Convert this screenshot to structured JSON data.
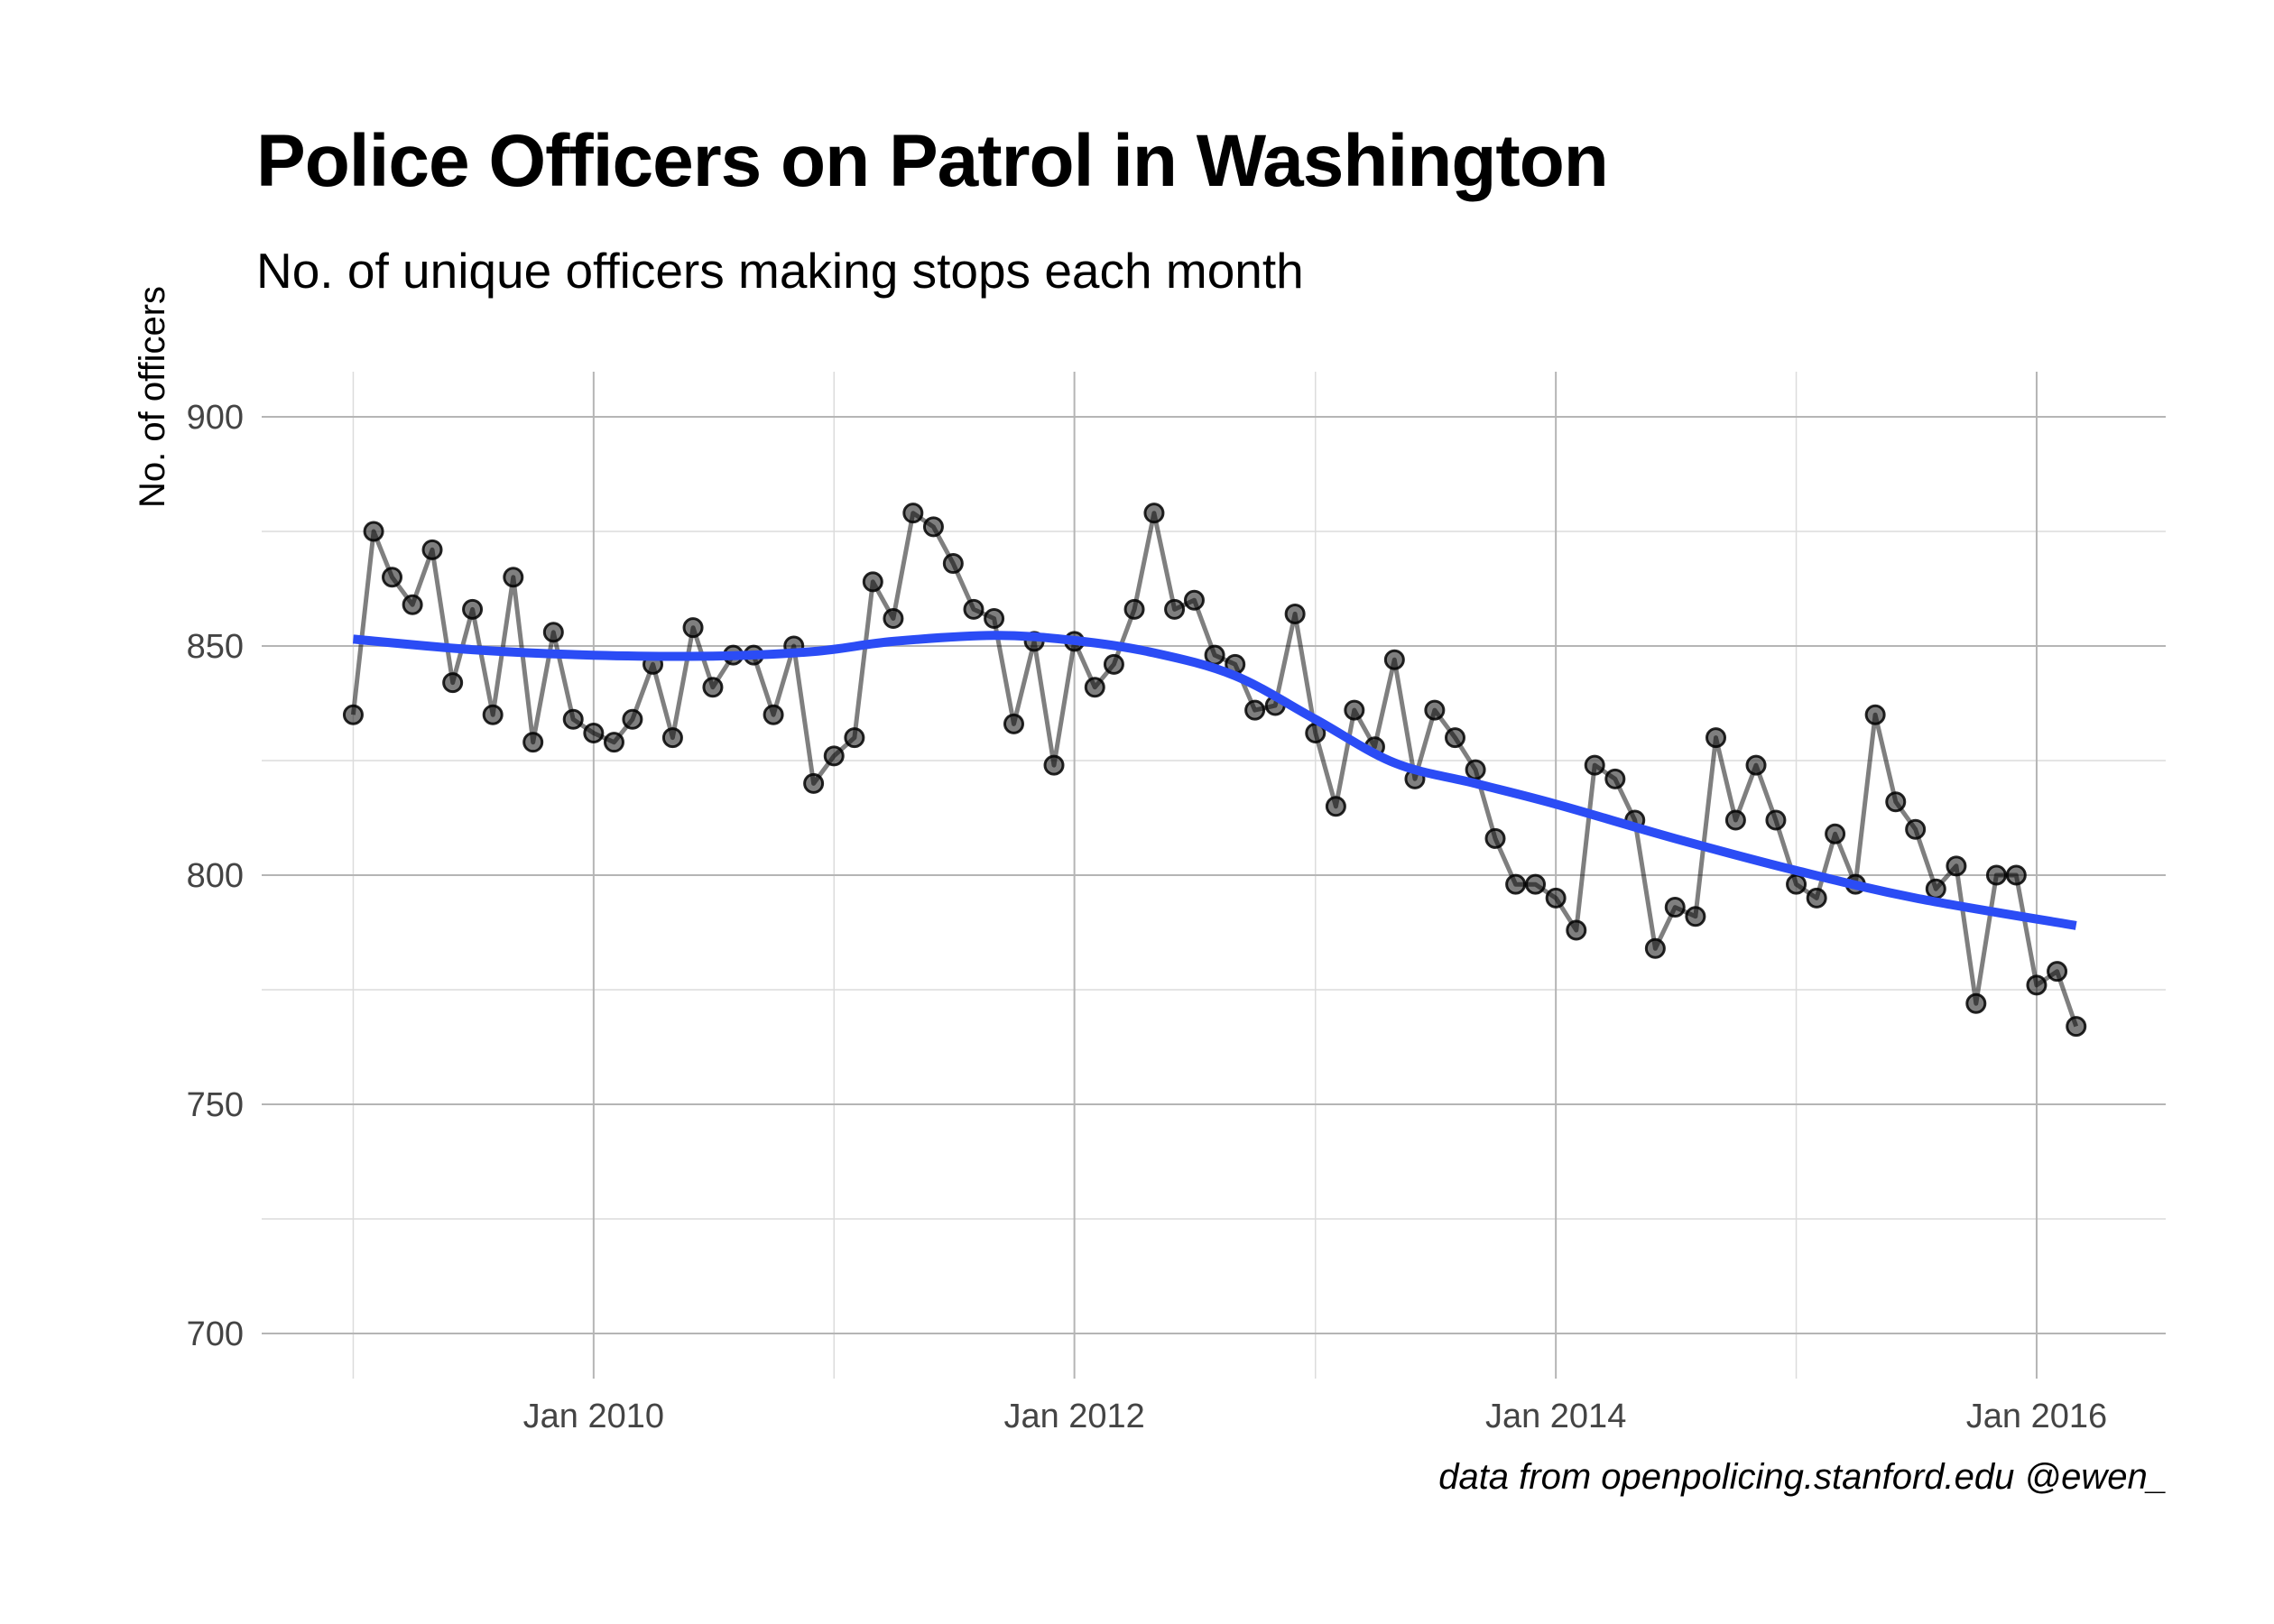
{
  "chart_data": {
    "type": "line",
    "title": "Police Officers on Patrol in Washington",
    "subtitle": "No. of unique officers making stops each month",
    "xlabel": "",
    "ylabel": "No. of officers",
    "caption": "data from openpolicing.stanford.edu     @ewen_",
    "ylim": [
      700,
      900
    ],
    "xlim": [
      "2008-08-15",
      "2016-07-15"
    ],
    "yticks": [
      "700",
      "750",
      "800",
      "850",
      "900"
    ],
    "xticks": [
      {
        "date": "2010-01-01",
        "label": "Jan 2010"
      },
      {
        "date": "2012-01-01",
        "label": "Jan 2012"
      },
      {
        "date": "2014-01-01",
        "label": "Jan 2014"
      },
      {
        "date": "2016-01-01",
        "label": "Jan 2016"
      }
    ],
    "x_start": "2009-01",
    "grid": true,
    "series": [
      {
        "name": "",
        "color": "#000000",
        "opacity": 0.5,
        "style": "line+points",
        "values": [
          835,
          875,
          865,
          859,
          871,
          842,
          858,
          835,
          865,
          829,
          853,
          834,
          831,
          829,
          834,
          846,
          830,
          854,
          841,
          848,
          848,
          835,
          850,
          820,
          826,
          830,
          864,
          856,
          879,
          876,
          868,
          858,
          856,
          833,
          851,
          824,
          851,
          841,
          846,
          858,
          879,
          858,
          860,
          848,
          846,
          836,
          837,
          857,
          831,
          815,
          836,
          828,
          847,
          821,
          836,
          830,
          823,
          808,
          798,
          798,
          795,
          788,
          824,
          821,
          812,
          784,
          793,
          791,
          830,
          812,
          824,
          812,
          798,
          795,
          809,
          798,
          835,
          816,
          810,
          797,
          802,
          772,
          800,
          800,
          776,
          779,
          767
        ]
      },
      {
        "name": "",
        "color": "#2b4cf5",
        "style": "smooth",
        "points": [
          {
            "x": "2009-01",
            "y": 851.5
          },
          {
            "x": "2009-07",
            "y": 849.2
          },
          {
            "x": "2010-01",
            "y": 848.0
          },
          {
            "x": "2010-07",
            "y": 847.8
          },
          {
            "x": "2010-12",
            "y": 848.8
          },
          {
            "x": "2011-04",
            "y": 851.0
          },
          {
            "x": "2011-09",
            "y": 852.3
          },
          {
            "x": "2012-01",
            "y": 851.2
          },
          {
            "x": "2012-05",
            "y": 848.5
          },
          {
            "x": "2012-09",
            "y": 843.5
          },
          {
            "x": "2013-01",
            "y": 834.0
          },
          {
            "x": "2013-05",
            "y": 824.5
          },
          {
            "x": "2013-09",
            "y": 820.0
          },
          {
            "x": "2014-01",
            "y": 815.5
          },
          {
            "x": "2014-07",
            "y": 808.0
          },
          {
            "x": "2015-01",
            "y": 801.0
          },
          {
            "x": "2015-07",
            "y": 795.0
          },
          {
            "x": "2016-03",
            "y": 789.0
          }
        ]
      }
    ]
  }
}
